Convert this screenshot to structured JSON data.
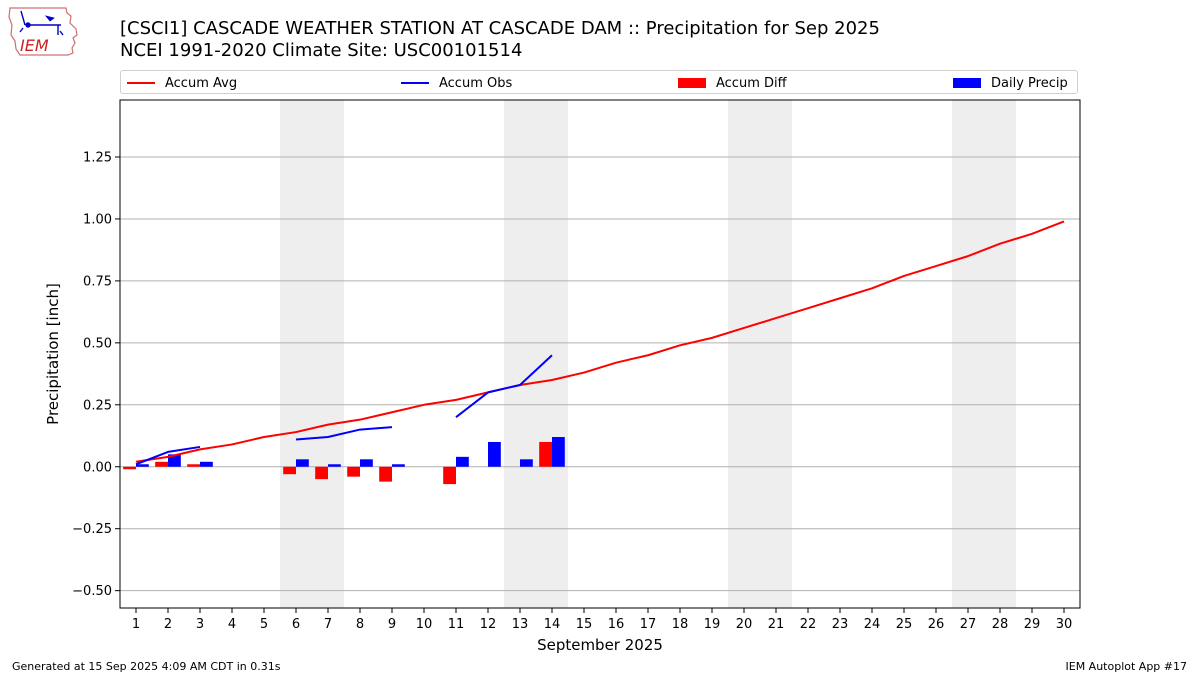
{
  "title_line1": "[CSCI1] CASCADE WEATHER STATION AT CASCADE DAM :: Precipitation for Sep 2025",
  "title_line2": "NCEI 1991-2020 Climate Site: USC00101514",
  "logo_text": "IEM",
  "footer_left": "Generated at 15 Sep 2025 4:09 AM CDT in 0.31s",
  "footer_right": "IEM Autoplot App #17",
  "chart_data": {
    "type": "line",
    "xlabel": "September 2025",
    "ylabel": "Precipitation [inch]",
    "xlim": [
      0.5,
      30.5
    ],
    "ylim": [
      -0.57,
      1.48
    ],
    "x": [
      1,
      2,
      3,
      4,
      5,
      6,
      7,
      8,
      9,
      10,
      11,
      12,
      13,
      14,
      15,
      16,
      17,
      18,
      19,
      20,
      21,
      22,
      23,
      24,
      25,
      26,
      27,
      28,
      29,
      30
    ],
    "x_tick_labels": [
      "1",
      "2",
      "3",
      "4",
      "5",
      "6",
      "7",
      "8",
      "9",
      "10",
      "11",
      "12",
      "13",
      "14",
      "15",
      "16",
      "17",
      "18",
      "19",
      "20",
      "21",
      "22",
      "23",
      "24",
      "25",
      "26",
      "27",
      "28",
      "29",
      "30"
    ],
    "y_ticks": [
      -0.5,
      -0.25,
      0.0,
      0.25,
      0.5,
      0.75,
      1.0,
      1.25
    ],
    "y_tick_labels": [
      "−0.50",
      "−0.25",
      "0.00",
      "0.25",
      "0.50",
      "0.75",
      "1.00",
      "1.25"
    ],
    "grid": "horizontal",
    "legend_placement": "top",
    "weekend_shading": [
      [
        5.5,
        7.5
      ],
      [
        12.5,
        14.5
      ],
      [
        19.5,
        21.5
      ],
      [
        26.5,
        28.5
      ]
    ],
    "series": [
      {
        "name": "Accum Avg",
        "kind": "line",
        "color": "#ff0000",
        "values": [
          0.02,
          0.04,
          0.07,
          0.09,
          0.12,
          0.14,
          0.17,
          0.19,
          0.22,
          0.25,
          0.27,
          0.3,
          0.33,
          0.35,
          0.38,
          0.42,
          0.45,
          0.49,
          0.52,
          0.56,
          0.6,
          0.64,
          0.68,
          0.72,
          0.77,
          0.81,
          0.85,
          0.9,
          0.94,
          0.99
        ]
      },
      {
        "name": "Accum Obs",
        "kind": "line",
        "color": "#0000ff",
        "values": [
          0.01,
          0.06,
          0.08,
          null,
          null,
          0.11,
          0.12,
          0.15,
          0.16,
          null,
          0.2,
          0.3,
          0.33,
          0.45,
          null,
          null,
          null,
          null,
          null,
          null,
          null,
          null,
          null,
          null,
          null,
          null,
          null,
          null,
          null,
          null
        ]
      },
      {
        "name": "Accum Diff",
        "kind": "bar",
        "color": "#ff0000",
        "values": [
          -0.01,
          0.02,
          0.01,
          null,
          null,
          -0.03,
          -0.05,
          -0.04,
          -0.06,
          null,
          -0.07,
          null,
          null,
          0.1,
          null,
          null,
          null,
          null,
          null,
          null,
          null,
          null,
          null,
          null,
          null,
          null,
          null,
          null,
          null,
          null
        ]
      },
      {
        "name": "Daily Precip",
        "kind": "bar",
        "color": "#0000ff",
        "values": [
          0.01,
          0.05,
          0.02,
          null,
          null,
          0.03,
          0.01,
          0.03,
          0.01,
          null,
          0.04,
          0.1,
          0.03,
          0.12,
          null,
          null,
          null,
          null,
          null,
          null,
          null,
          null,
          null,
          null,
          null,
          null,
          null,
          null,
          null,
          null
        ]
      }
    ]
  }
}
